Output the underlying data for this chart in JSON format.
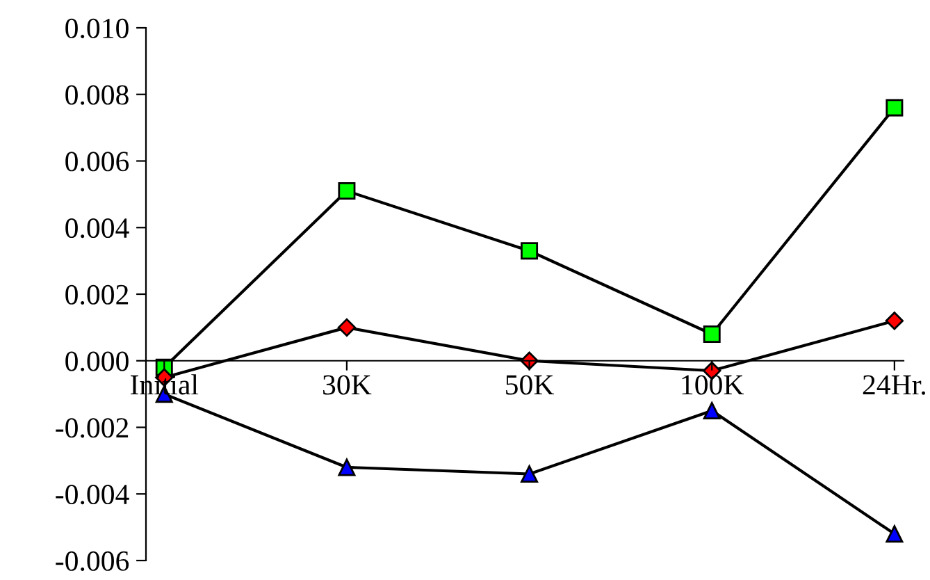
{
  "chart_data": {
    "type": "line",
    "categories": [
      "Initial",
      "30K",
      "50K",
      "100K",
      "24Hr."
    ],
    "series": [
      {
        "color": "#00ff00",
        "marker": "square",
        "values": [
          -0.0002,
          0.0051,
          0.0033,
          0.0008,
          0.0076
        ]
      },
      {
        "color": "#ff0000",
        "marker": "diamond",
        "values": [
          -0.0005,
          0.001,
          0.0,
          -0.0003,
          0.0012
        ]
      },
      {
        "color": "#0000ff",
        "marker": "triangle",
        "values": [
          -0.001,
          -0.0032,
          -0.0034,
          -0.0015,
          -0.0052
        ]
      }
    ],
    "ylim": [
      -0.006,
      0.01
    ],
    "yticks": [
      {
        "value": -0.006,
        "label": "-0.006"
      },
      {
        "value": -0.004,
        "label": "-0.004"
      },
      {
        "value": -0.002,
        "label": "-0.002"
      },
      {
        "value": 0,
        "label": "0.000"
      },
      {
        "value": 0.002,
        "label": "0.002"
      },
      {
        "value": 0.004,
        "label": "0.004"
      },
      {
        "value": 0.006,
        "label": "0.006"
      },
      {
        "value": 0.008,
        "label": "0.008"
      },
      {
        "value": 0.01,
        "label": "0.010"
      }
    ],
    "grid": false,
    "legend": false,
    "line_style": "solid"
  }
}
